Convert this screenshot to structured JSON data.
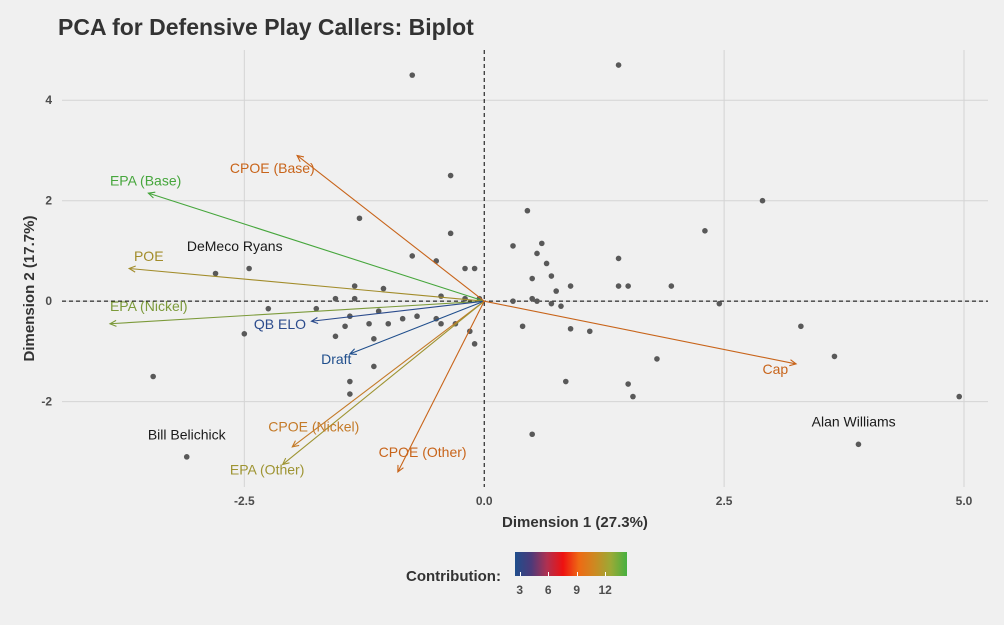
{
  "title": "PCA for Defensive Play Callers: Biplot",
  "chart_data": {
    "type": "scatter",
    "subtype": "pca-biplot",
    "xlabel": "Dimension 1 (27.3%)",
    "ylabel": "Dimension 2 (17.7%)",
    "xlim": [
      -4.4,
      5.25
    ],
    "ylim": [
      -3.7,
      5.0
    ],
    "x_ticks": [
      -2.5,
      0.0,
      2.5,
      5.0
    ],
    "x_tick_labels": [
      "-2.5",
      "0.0",
      "2.5",
      "5.0"
    ],
    "y_ticks": [
      -2,
      0,
      2,
      4
    ],
    "y_tick_labels": [
      "-2",
      "0",
      "2",
      "4"
    ],
    "grid": true,
    "reference_lines": {
      "x": 0,
      "y": 0,
      "style": "dashed"
    },
    "point_color": "#595959",
    "points": [
      {
        "x": -0.75,
        "y": 4.5
      },
      {
        "x": 1.4,
        "y": 4.7
      },
      {
        "x": 2.9,
        "y": 2.0
      },
      {
        "x": 2.3,
        "y": 1.4
      },
      {
        "x": -0.35,
        "y": 2.5
      },
      {
        "x": -1.3,
        "y": 1.65
      },
      {
        "x": -0.35,
        "y": 1.35
      },
      {
        "x": 0.45,
        "y": 1.8
      },
      {
        "x": 0.3,
        "y": 1.1
      },
      {
        "x": 0.6,
        "y": 1.15
      },
      {
        "x": 0.55,
        "y": 0.95
      },
      {
        "x": 0.65,
        "y": 0.75
      },
      {
        "x": 1.4,
        "y": 0.85
      },
      {
        "x": -0.75,
        "y": 0.9
      },
      {
        "x": -0.5,
        "y": 0.8
      },
      {
        "x": -0.2,
        "y": 0.65
      },
      {
        "x": -0.1,
        "y": 0.65
      },
      {
        "x": 0.5,
        "y": 0.45
      },
      {
        "x": 0.7,
        "y": 0.5
      },
      {
        "x": 0.75,
        "y": 0.2
      },
      {
        "x": 0.9,
        "y": 0.3
      },
      {
        "x": 1.4,
        "y": 0.3
      },
      {
        "x": 1.5,
        "y": 0.3
      },
      {
        "x": 1.95,
        "y": 0.3
      },
      {
        "x": -2.8,
        "y": 0.55
      },
      {
        "x": -2.45,
        "y": 0.65
      },
      {
        "x": -1.35,
        "y": 0.3
      },
      {
        "x": -1.05,
        "y": 0.25
      },
      {
        "x": -0.45,
        "y": 0.1
      },
      {
        "x": -0.2,
        "y": 0.05
      },
      {
        "x": -0.05,
        "y": 0.05
      },
      {
        "x": 0.3,
        "y": 0.0
      },
      {
        "x": 0.5,
        "y": 0.05
      },
      {
        "x": 0.55,
        "y": 0.0
      },
      {
        "x": 0.7,
        "y": -0.05
      },
      {
        "x": 0.8,
        "y": -0.1
      },
      {
        "x": -1.55,
        "y": 0.05
      },
      {
        "x": -1.35,
        "y": 0.05
      },
      {
        "x": -1.75,
        "y": -0.15
      },
      {
        "x": -2.25,
        "y": -0.15
      },
      {
        "x": -1.1,
        "y": -0.2
      },
      {
        "x": -1.4,
        "y": -0.3
      },
      {
        "x": -1.2,
        "y": -0.45
      },
      {
        "x": -1.0,
        "y": -0.45
      },
      {
        "x": -0.85,
        "y": -0.35
      },
      {
        "x": -0.7,
        "y": -0.3
      },
      {
        "x": -0.5,
        "y": -0.35
      },
      {
        "x": -0.45,
        "y": -0.45
      },
      {
        "x": -0.3,
        "y": -0.45
      },
      {
        "x": -1.45,
        "y": -0.5
      },
      {
        "x": -1.55,
        "y": -0.7
      },
      {
        "x": -1.15,
        "y": -0.75
      },
      {
        "x": -0.15,
        "y": -0.6
      },
      {
        "x": -0.1,
        "y": -0.85
      },
      {
        "x": 0.4,
        "y": -0.5
      },
      {
        "x": 0.9,
        "y": -0.55
      },
      {
        "x": 1.1,
        "y": -0.6
      },
      {
        "x": -2.5,
        "y": -0.65
      },
      {
        "x": -1.15,
        "y": -1.3
      },
      {
        "x": -1.4,
        "y": -1.6
      },
      {
        "x": -1.4,
        "y": -1.85
      },
      {
        "x": -3.45,
        "y": -1.5
      },
      {
        "x": 0.85,
        "y": -1.6
      },
      {
        "x": 1.5,
        "y": -1.65
      },
      {
        "x": 1.55,
        "y": -1.9
      },
      {
        "x": 1.8,
        "y": -1.15
      },
      {
        "x": 2.45,
        "y": -0.05
      },
      {
        "x": 3.3,
        "y": -0.5
      },
      {
        "x": 3.65,
        "y": -1.1
      },
      {
        "x": 4.95,
        "y": -1.9
      },
      {
        "x": 0.5,
        "y": -2.65
      },
      {
        "x": 3.9,
        "y": -2.85
      },
      {
        "x": -3.1,
        "y": -3.1
      }
    ],
    "point_labels": [
      {
        "text": "DeMeco Ryans",
        "x": -2.6,
        "y": 1.0
      },
      {
        "text": "Bill Belichick",
        "x": -3.1,
        "y": -2.75
      },
      {
        "text": "Alan Williams",
        "x": 3.85,
        "y": -2.5
      }
    ],
    "vectors": [
      {
        "name": "EPA (Base)",
        "x": -3.5,
        "y": 2.15,
        "contribution": 13,
        "color": "#46a63c"
      },
      {
        "name": "POE",
        "x": -3.7,
        "y": 0.65,
        "contribution": 10,
        "color": "#a28c2a"
      },
      {
        "name": "EPA (Nickel)",
        "x": -3.9,
        "y": -0.45,
        "contribution": 12,
        "color": "#7c9a3a"
      },
      {
        "name": "QB ELO",
        "x": -1.8,
        "y": -0.4,
        "contribution": 3,
        "color": "#2b4b8c"
      },
      {
        "name": "Draft",
        "x": -1.4,
        "y": -1.05,
        "contribution": 3,
        "color": "#1f4e8c"
      },
      {
        "name": "CPOE (Base)",
        "x": -1.95,
        "y": 2.9,
        "contribution": 9,
        "color": "#c8641a"
      },
      {
        "name": "CPOE (Nickel)",
        "x": -2.0,
        "y": -2.9,
        "contribution": 9,
        "color": "#c47a28"
      },
      {
        "name": "EPA (Other)",
        "x": -2.1,
        "y": -3.25,
        "contribution": 11,
        "color": "#9e9432"
      },
      {
        "name": "CPOE (Other)",
        "x": -0.9,
        "y": -3.4,
        "contribution": 9,
        "color": "#c8641a"
      },
      {
        "name": "Cap",
        "x": 3.25,
        "y": -1.25,
        "contribution": 8,
        "color": "#c8641a"
      }
    ],
    "vector_label_positions": [
      {
        "x": -3.9,
        "y": 2.3
      },
      {
        "x": -3.65,
        "y": 0.8
      },
      {
        "x": -3.9,
        "y": -0.2
      },
      {
        "x": -2.4,
        "y": -0.55
      },
      {
        "x": -1.7,
        "y": -1.25
      },
      {
        "x": -2.65,
        "y": 2.55
      },
      {
        "x": -2.25,
        "y": -2.6
      },
      {
        "x": -2.65,
        "y": -3.45
      },
      {
        "x": -1.1,
        "y": -3.1
      },
      {
        "x": 2.9,
        "y": -1.45
      }
    ],
    "legend": {
      "title": "Contribution:",
      "type": "colorbar",
      "position": "bottom",
      "ticks": [
        3,
        6,
        9,
        12
      ],
      "range": [
        2.5,
        14.3
      ],
      "colors": [
        "#1f4e8c",
        "#4b3a7a",
        "#b03050",
        "#ee1111",
        "#ee6a14",
        "#cc8a22",
        "#9aaa36",
        "#46b040"
      ]
    }
  }
}
